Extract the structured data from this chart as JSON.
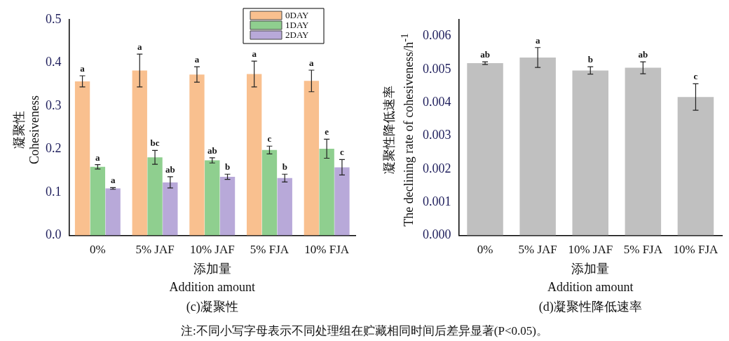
{
  "chart_data": [
    {
      "type": "bar",
      "title": "(c)凝聚性",
      "xlabel": "添加量\nAddition amount",
      "ylabel": "凝聚性\nCohesiveness",
      "categories": [
        "0%",
        "5% JAF",
        "10% JAF",
        "5% FJA",
        "10% FJA"
      ],
      "ylim": [
        0,
        0.5
      ],
      "yticks": [
        {
          "value": 0,
          "label": "0.0"
        },
        0.1,
        0.2,
        0.3,
        0.4,
        0.5
      ],
      "grid": false,
      "legend": "top right",
      "series": [
        {
          "name": "0DAY",
          "color": "#f9c08f",
          "values": [
            0.357,
            0.382,
            0.373,
            0.374,
            0.358
          ],
          "errors": [
            0.013,
            0.038,
            0.018,
            0.03,
            0.025
          ],
          "value_labels": [
            "a",
            "a",
            "a",
            "a",
            "a"
          ]
        },
        {
          "name": "1DAY",
          "color": "#8fcf8f",
          "values": [
            0.159,
            0.181,
            0.174,
            0.198,
            0.201
          ],
          "errors": [
            0.005,
            0.016,
            0.006,
            0.009,
            0.022
          ],
          "value_labels": [
            "a",
            "bc",
            "ab",
            "c",
            "e"
          ]
        },
        {
          "name": "2DAY",
          "color": "#b8a9d9",
          "values": [
            0.109,
            0.123,
            0.136,
            0.133,
            0.158
          ],
          "errors": [
            0.002,
            0.013,
            0.006,
            0.009,
            0.018
          ],
          "value_labels": [
            "a",
            "ab",
            "b",
            "b",
            "c"
          ]
        }
      ],
      "annotations": [
        "注:不同小写字母表示不同处理组在贮藏相同时间后差异显著(P<0.05)。"
      ]
    },
    {
      "type": "bar",
      "title": "(d)凝聚性降低速率",
      "xlabel": "添加量\nAddition amount",
      "ylabel": "凝聚性降低速率\nThe declining rate of cohesiveness/h$^{-1}$",
      "categories": [
        "0%",
        "5% JAF",
        "10% JAF",
        "5% FJA",
        "10% FJA"
      ],
      "ylim": [
        0,
        0.0065
      ],
      "yticks": [
        {
          "value": 0,
          "label": "0.000"
        },
        0.001,
        0.002,
        0.003,
        0.004,
        0.005,
        0.006
      ],
      "grid": false,
      "legend": false,
      "series": [
        {
          "color": "#c0c0c0",
          "values": [
            0.00519,
            0.00536,
            0.00497,
            0.00505,
            0.00417
          ],
          "errors": [
            4e-05,
            0.0003,
            0.00011,
            0.00018,
            0.0004
          ],
          "value_labels": [
            "ab",
            "a",
            "b",
            "ab",
            "c"
          ]
        }
      ]
    }
  ]
}
